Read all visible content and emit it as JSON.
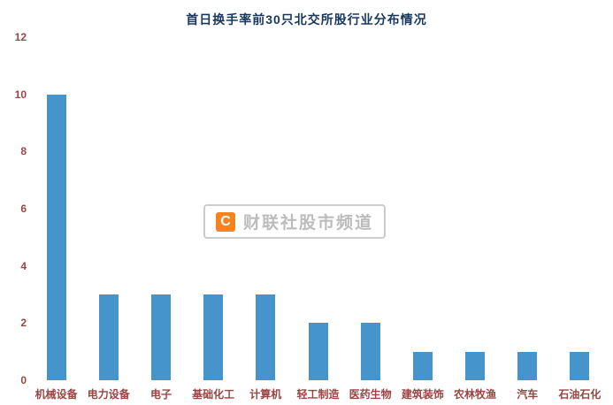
{
  "watermark": {
    "logo_letter": "C",
    "text": "财联社股市频道",
    "logo_color": "#f5831f",
    "text_color": "#bcbcbc"
  },
  "colors": {
    "title": "#17375e",
    "axis_labels": "#9c4343",
    "bar": "#4594cb",
    "background": "#ffffff"
  },
  "chart_data": {
    "type": "bar",
    "title": "首日换手率前30只北交所股行业分布情况",
    "categories": [
      "机械设备",
      "电力设备",
      "电子",
      "基础化工",
      "计算机",
      "轻工制造",
      "医药生物",
      "建筑装饰",
      "农林牧渔",
      "汽车",
      "石油石化"
    ],
    "values": [
      10,
      3,
      3,
      3,
      3,
      2,
      2,
      1,
      1,
      1,
      1
    ],
    "xlabel": "",
    "ylabel": "",
    "ylim": [
      0,
      12
    ],
    "yticks": [
      0,
      2,
      4,
      6,
      8,
      10,
      12
    ],
    "grid": false,
    "legend": false,
    "bar_color": "#4594cb"
  }
}
